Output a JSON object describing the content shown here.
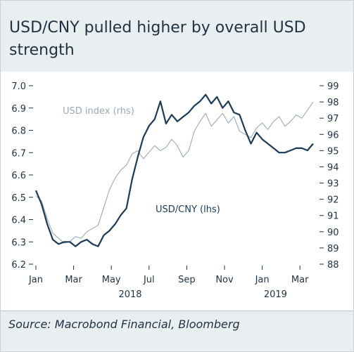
{
  "title": "USD/CNY pulled higher by overall USD strength",
  "source": "Source: Macrobond Financial, Bloomberg",
  "chart_data": {
    "type": "line",
    "left_axis": {
      "ticks": [
        "7.0",
        "6.9",
        "6.8",
        "6.7",
        "6.6",
        "6.5",
        "6.4",
        "6.3",
        "6.2"
      ],
      "min": 6.2,
      "max": 7.0
    },
    "right_axis": {
      "ticks": [
        "99",
        "98",
        "97",
        "96",
        "95",
        "94",
        "93",
        "92",
        "91",
        "90",
        "89",
        "88"
      ],
      "min": 88,
      "max": 99
    },
    "x_axis": {
      "month_labels": [
        "Jan",
        "Mar",
        "May",
        "Jul",
        "Sep",
        "Nov",
        "Jan",
        "Mar"
      ],
      "year_labels": [
        "2018",
        "2019"
      ]
    },
    "series": [
      {
        "name": "USD index (rhs)",
        "axis": "right",
        "color": "#9aaab6",
        "x": [
          0,
          0.3,
          0.6,
          0.9,
          1.2,
          1.5,
          1.8,
          2.1,
          2.4,
          2.7,
          3.0,
          3.3,
          3.6,
          3.9,
          4.2,
          4.5,
          4.8,
          5.1,
          5.4,
          5.7,
          6.0,
          6.3,
          6.6,
          6.9,
          7.2,
          7.5,
          7.8,
          8.1,
          8.4,
          8.7,
          9.0,
          9.3,
          9.6,
          9.9,
          10.2,
          10.5,
          10.8,
          11.1,
          11.4,
          11.7,
          12.0,
          12.3,
          12.6,
          12.9,
          13.2,
          13.5,
          13.8,
          14.1,
          14.4,
          14.7
        ],
        "values": [
          92.2,
          91.9,
          90.8,
          89.9,
          89.6,
          89.3,
          89.4,
          89.7,
          89.6,
          90.0,
          90.2,
          90.4,
          91.5,
          92.6,
          93.3,
          93.8,
          94.1,
          94.8,
          95.0,
          94.5,
          94.9,
          95.3,
          95.0,
          95.2,
          95.7,
          95.3,
          94.6,
          95.0,
          96.2,
          96.8,
          97.3,
          96.5,
          96.9,
          97.3,
          96.7,
          97.1,
          96.2,
          96.0,
          95.8,
          96.4,
          96.7,
          96.3,
          96.8,
          97.1,
          96.5,
          96.8,
          97.2,
          97.0,
          97.5,
          98.0
        ]
      },
      {
        "name": "USD/CNY (lhs)",
        "axis": "left",
        "color": "#1c3a55",
        "x": [
          0,
          0.3,
          0.6,
          0.9,
          1.2,
          1.5,
          1.8,
          2.1,
          2.4,
          2.7,
          3.0,
          3.3,
          3.6,
          3.9,
          4.2,
          4.5,
          4.8,
          5.1,
          5.4,
          5.7,
          6.0,
          6.3,
          6.6,
          6.9,
          7.2,
          7.5,
          7.8,
          8.1,
          8.4,
          8.7,
          9.0,
          9.3,
          9.6,
          9.9,
          10.2,
          10.5,
          10.8,
          11.1,
          11.4,
          11.7,
          12.0,
          12.3,
          12.6,
          12.9,
          13.2,
          13.5,
          13.8,
          14.1,
          14.4,
          14.7
        ],
        "values": [
          6.53,
          6.47,
          6.38,
          6.31,
          6.29,
          6.3,
          6.3,
          6.28,
          6.3,
          6.31,
          6.29,
          6.28,
          6.33,
          6.35,
          6.38,
          6.42,
          6.45,
          6.58,
          6.68,
          6.77,
          6.82,
          6.85,
          6.93,
          6.83,
          6.87,
          6.84,
          6.86,
          6.88,
          6.91,
          6.93,
          6.96,
          6.92,
          6.95,
          6.9,
          6.93,
          6.88,
          6.87,
          6.8,
          6.74,
          6.79,
          6.76,
          6.74,
          6.72,
          6.7,
          6.7,
          6.71,
          6.72,
          6.72,
          6.71,
          6.74
        ]
      }
    ],
    "series_label_texts": [
      "USD index (rhs)",
      "USD/CNY (lhs)"
    ]
  }
}
